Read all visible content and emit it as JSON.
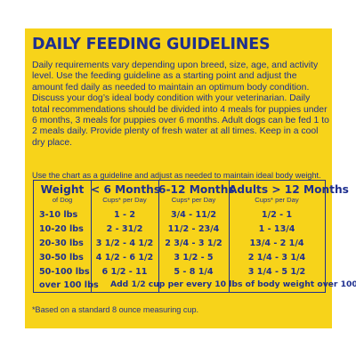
{
  "title": "DAILY FEEDING GUIDELINES",
  "intro": "Daily requirements vary depending upon breed, size, age, and activity level. Use the feeding guideline as a starting point and adjust the amount fed daily as needed to maintain an optimum body condition. Discuss your dog’s ideal body condition with your veterinarian. Daily total recommendations should be divided into 4 meals for puppies under 6 months, 3 meals for puppies over 6 months. Adult dogs can be fed 1 to 2 meals daily. Provide plenty of fresh water at all times. Keep in a cool dry place.",
  "chart_note": "Use the chart as a guideline and adjust as needed to maintain ideal body weight.",
  "table": {
    "headers": [
      {
        "main": "Weight",
        "sub": "of Dog"
      },
      {
        "main": "< 6 Months",
        "sub": "Cups* per Day"
      },
      {
        "main": "6-12 Months",
        "sub": "Cups* per Day"
      },
      {
        "main": "Adults > 12 Months",
        "sub": "Cups* per Day"
      }
    ],
    "rows": [
      {
        "weight": "3-10 lbs",
        "under6": "1 - 2",
        "m6to12": "3/4 - 11/2",
        "adult": "1/2 - 1"
      },
      {
        "weight": "10-20 lbs",
        "under6": "2 - 31/2",
        "m6to12": "11/2 - 23/4",
        "adult": "1 - 13/4"
      },
      {
        "weight": "20-30 lbs",
        "under6": "3 1/2 - 4 1/2",
        "m6to12": "2 3/4 - 3 1/2",
        "adult": "13/4 - 2 1/4"
      },
      {
        "weight": "30-50 lbs",
        "under6": "4 1/2 - 6 1/2",
        "m6to12": "3 1/2 - 5",
        "adult": "2 1/4 - 3 1/4"
      },
      {
        "weight": "50-100 lbs",
        "under6": "6 1/2 - 11",
        "m6to12": "5 - 8 1/4",
        "adult": "3 1/4 - 5 1/2"
      }
    ],
    "last_row_weight": "over 100 lbs",
    "last_row_note": "Add 1/2 cup per every 10 lbs of body weight over 100 lbs"
  },
  "footnote": "*Based on a standard 8 ounce measuring cup.",
  "colors": {
    "panel": "#f7d31a",
    "text": "#1e2f8f"
  }
}
